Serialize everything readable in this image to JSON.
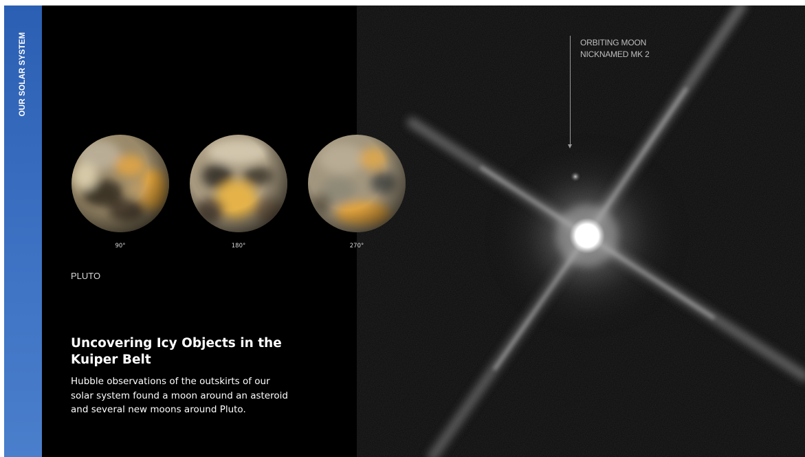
{
  "sidebar": {
    "label": "OUR SOLAR SYSTEM",
    "color": "#3a6bbd"
  },
  "pluto_views": [
    {
      "angle": "90°"
    },
    {
      "angle": "180°"
    },
    {
      "angle": "270°"
    }
  ],
  "pluto_caption": "PLUTO",
  "headline": "Uncovering Icy Objects in the Kuiper Belt",
  "description": "Hubble observations of the outskirts of our solar system found a moon around an asteroid and several new moons around Pluto.",
  "moon_annotation": {
    "line1": "ORBITING MOON",
    "line2": "NICKNAMED MK 2"
  },
  "images": {
    "hubble_photo": "dwarf-planet-with-diffraction-spikes-photo",
    "pluto_globes": "pluto-surface-map-globe-icon"
  }
}
